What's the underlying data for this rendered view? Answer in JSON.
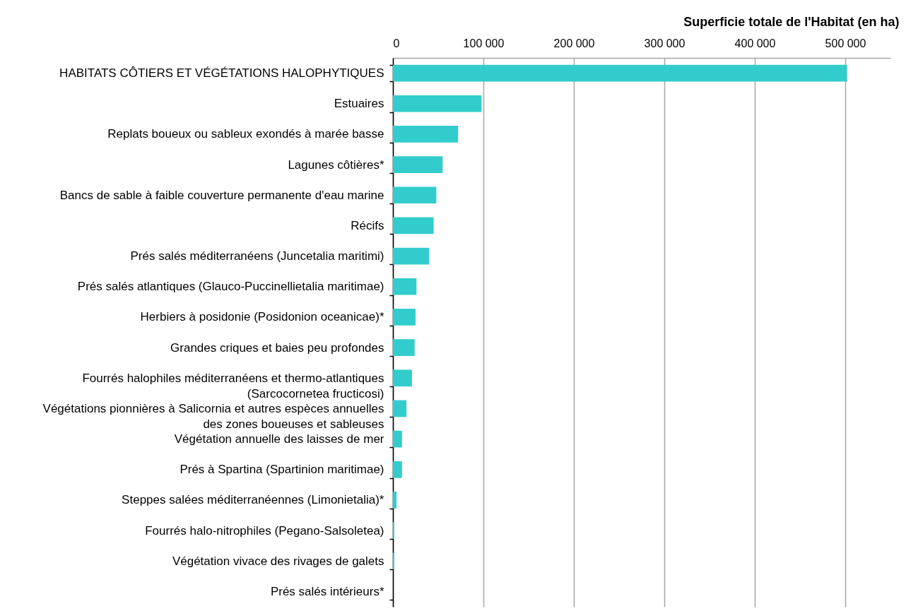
{
  "chart_data": {
    "type": "bar",
    "orientation": "horizontal",
    "xlabel": "Superficie totale de l'Habitat (en ha)",
    "categories": [
      "HABITATS CÔTIERS ET VÉGÉTATIONS HALOPHYTIQUES",
      "Estuaires",
      "Replats boueux ou sableux exondés à marée basse",
      "Lagunes côtières*",
      "Bancs de sable à faible couverture permanente d'eau marine",
      "Récifs",
      "Prés salés méditerranéens (Juncetalia maritimi)",
      "Prés salés atlantiques (Glauco-Puccinellietalia maritimae)",
      "Herbiers à posidonie (Posidonion oceanicae)*",
      "Grandes criques et baies peu profondes",
      "Fourrés halophiles méditerranéens et thermo-atlantiques\n(Sarcocornetea fructicosi)",
      "Végétations pionnières à Salicornia et autres espèces annuelles\ndes zones boueuses et sableuses",
      "Végétation annuelle des laisses de mer",
      "Prés à Spartina (Spartinion maritimae)",
      "Steppes salées méditerranéennes (Limonietalia)*",
      "Fourrés halo-nitrophiles (Pegano-Salsoletea)",
      "Végétation vivace des rivages de galets",
      "Prés salés intérieurs*"
    ],
    "values": [
      502000,
      98000,
      72000,
      55000,
      48000,
      45000,
      40000,
      26000,
      25000,
      24000,
      21000,
      15000,
      10000,
      10000,
      4000,
      1500,
      1500,
      0
    ],
    "color": "#33cccc",
    "xlim": [
      0,
      550000
    ],
    "xticks": [
      0,
      {
        "value": 100000,
        "label": "100 000"
      },
      {
        "value": 200000,
        "label": "200 000"
      },
      {
        "value": 300000,
        "label": "300 000"
      },
      {
        "value": 400000,
        "label": "400 000"
      },
      {
        "value": 500000,
        "label": "500 000"
      }
    ],
    "grid": "x"
  }
}
